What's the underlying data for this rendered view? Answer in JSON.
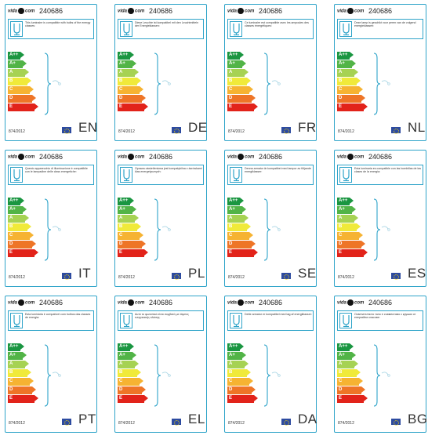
{
  "product_code": "240686",
  "regulation": "874/2012",
  "logo_text": [
    "vida",
    "com"
  ],
  "energy_classes": [
    "A++",
    "A+",
    "A",
    "B",
    "C",
    "D",
    "E"
  ],
  "class_colors": [
    "#1a9641",
    "#52b447",
    "#a6d253",
    "#f0ea3a",
    "#f6b332",
    "#ee7527",
    "#e2231a"
  ],
  "labels": [
    {
      "lang": "EN",
      "text": "This luminaire is compatible with bulbs of the energy classes:"
    },
    {
      "lang": "DE",
      "text": "Diese Leuchte ist kompatibel mit den Leuchtmitteln der Energieklassen:"
    },
    {
      "lang": "FR",
      "text": "Ce luminaire est compatible avec les ampoules des classes énergétiques:"
    },
    {
      "lang": "NL",
      "text": "Deze lamp is geschikt voor peren van de volgend energieklassen:"
    },
    {
      "lang": "IT",
      "text": "Questo apparecchio di illuminazione è compatibile con le lampadine delle class energetiche:"
    },
    {
      "lang": "PL",
      "text": "Oprawa oświetleniowa jest kompatybilna z żarówkami klas energetycznych:"
    },
    {
      "lang": "SE",
      "text": "Denna armatur är kompatibel med lampor av följande energiklasser:"
    },
    {
      "lang": "ES",
      "text": "Esta luminaria es compatible con las bombillas de las clases de la energía:"
    },
    {
      "lang": "PT",
      "text": "Esta luminária é compatível com bulbos das classes de energia:"
    },
    {
      "lang": "EL",
      "text": "Αυτό το φωτιστικό είναι συμβατό με λάμπες ενεργειακής κλάσης:"
    },
    {
      "lang": "DA",
      "text": "Dette armatur er kompatibel med løg af energiklasser:"
    },
    {
      "lang": "BG",
      "text": "Осветителното тяло е съвместимо с крушки от енергийни класове:"
    }
  ]
}
